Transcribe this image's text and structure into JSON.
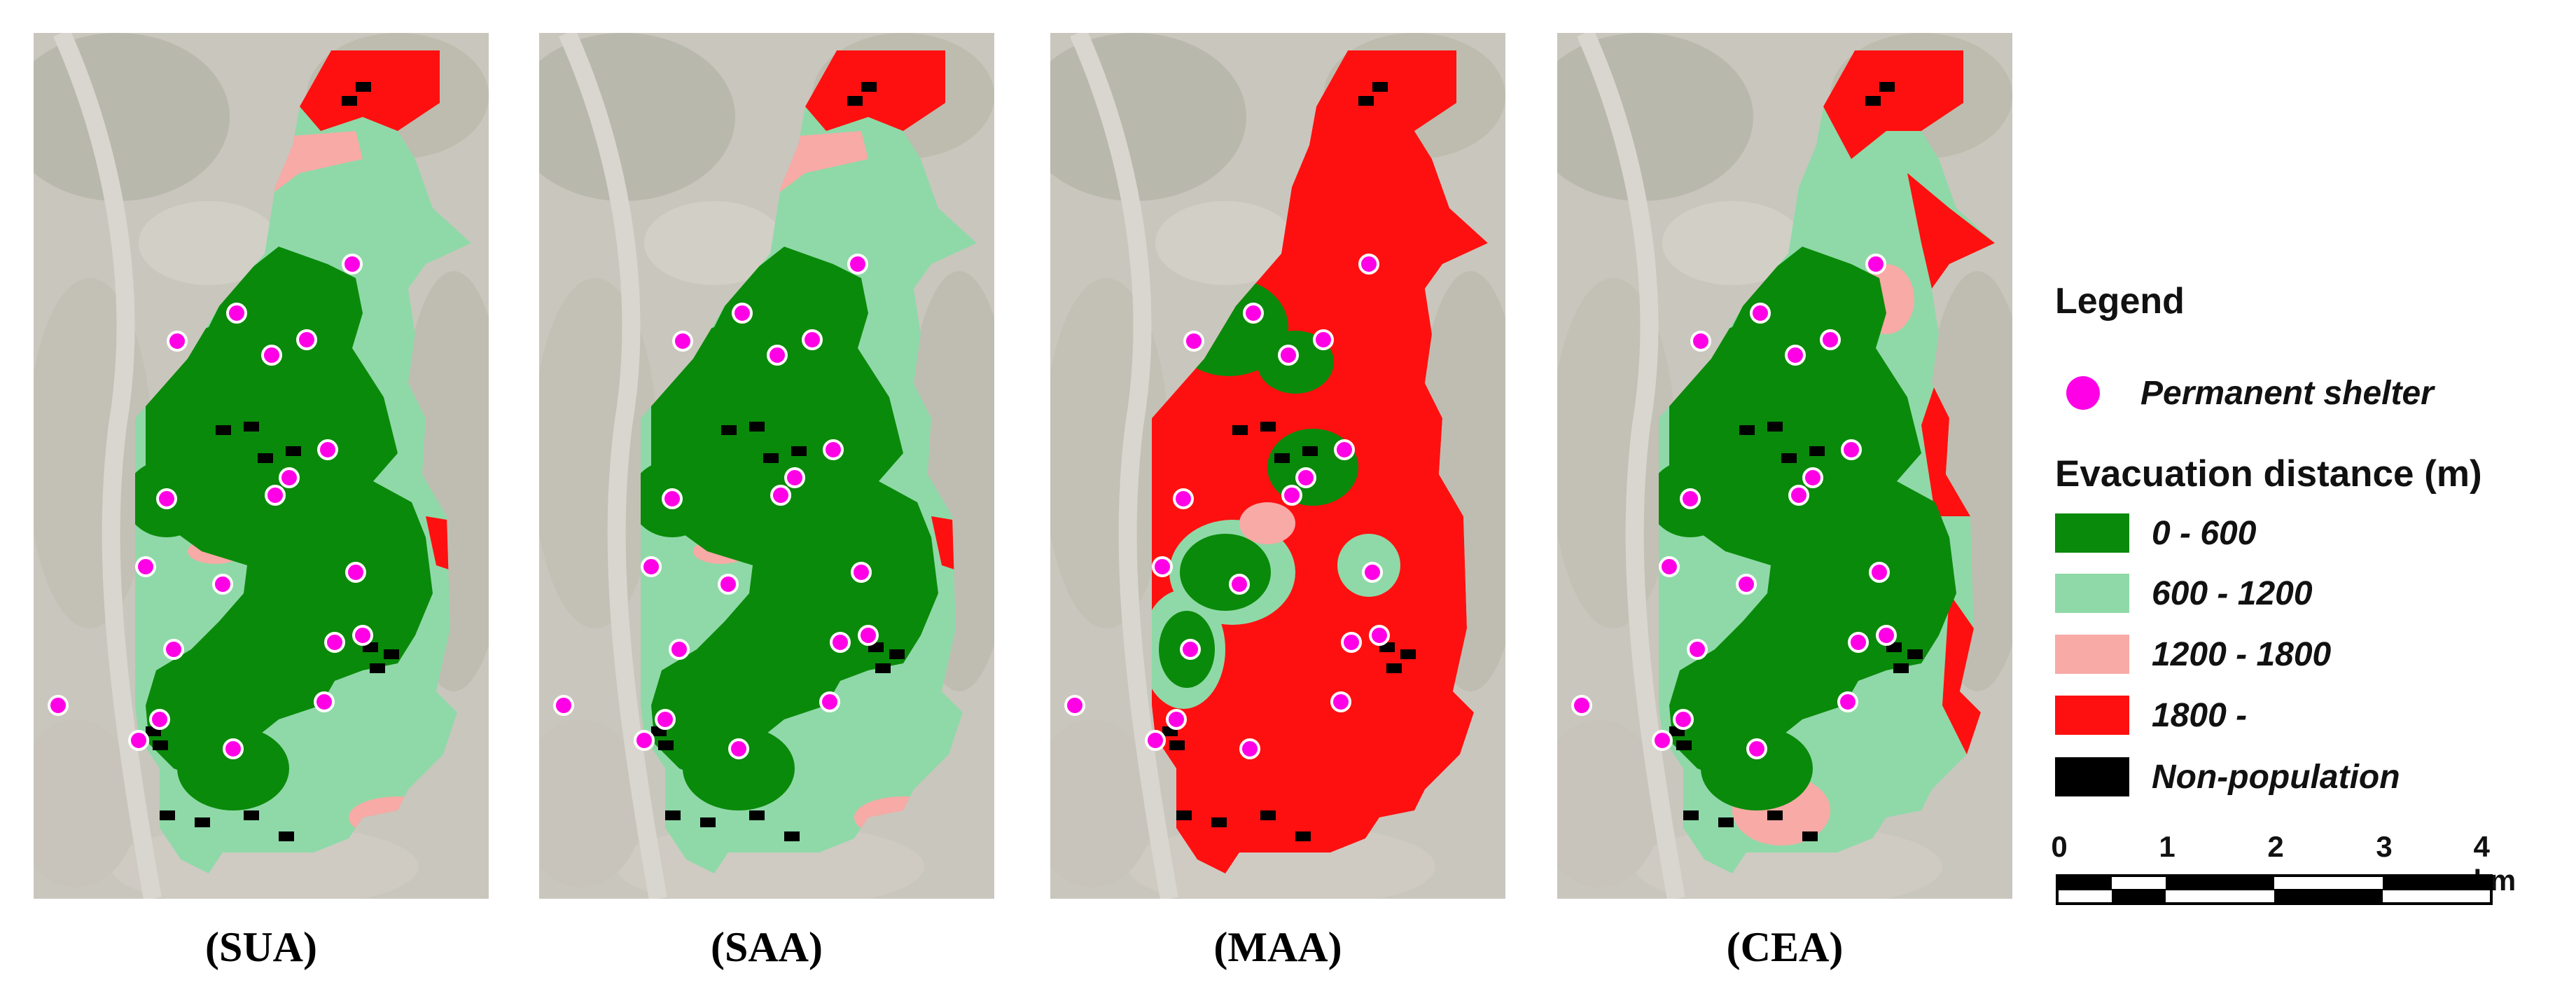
{
  "panels": [
    {
      "id": "SUA",
      "caption": "(SUA)"
    },
    {
      "id": "SAA",
      "caption": "(SAA)"
    },
    {
      "id": "MAA",
      "caption": "(MAA)"
    },
    {
      "id": "CEA",
      "caption": "(CEA)"
    }
  ],
  "legend": {
    "title": "Legend",
    "shelter_label": "Permanent shelter",
    "evacuation_title": "Evacuation distance (m)",
    "classes": [
      {
        "label": "0 - 600",
        "color": "#0a8a0a"
      },
      {
        "label": "600 - 1200",
        "color": "#8fd9a8"
      },
      {
        "label": "1200 - 1800",
        "color": "#f7aaa6"
      },
      {
        "label": "1800 -",
        "color": "#ff1010"
      },
      {
        "label": "Non-population",
        "color": "#000000"
      }
    ],
    "shelter_color": "#ff00e6"
  },
  "scale_bar": {
    "ticks": [
      "0",
      "1",
      "2",
      "3",
      "4 km"
    ]
  }
}
